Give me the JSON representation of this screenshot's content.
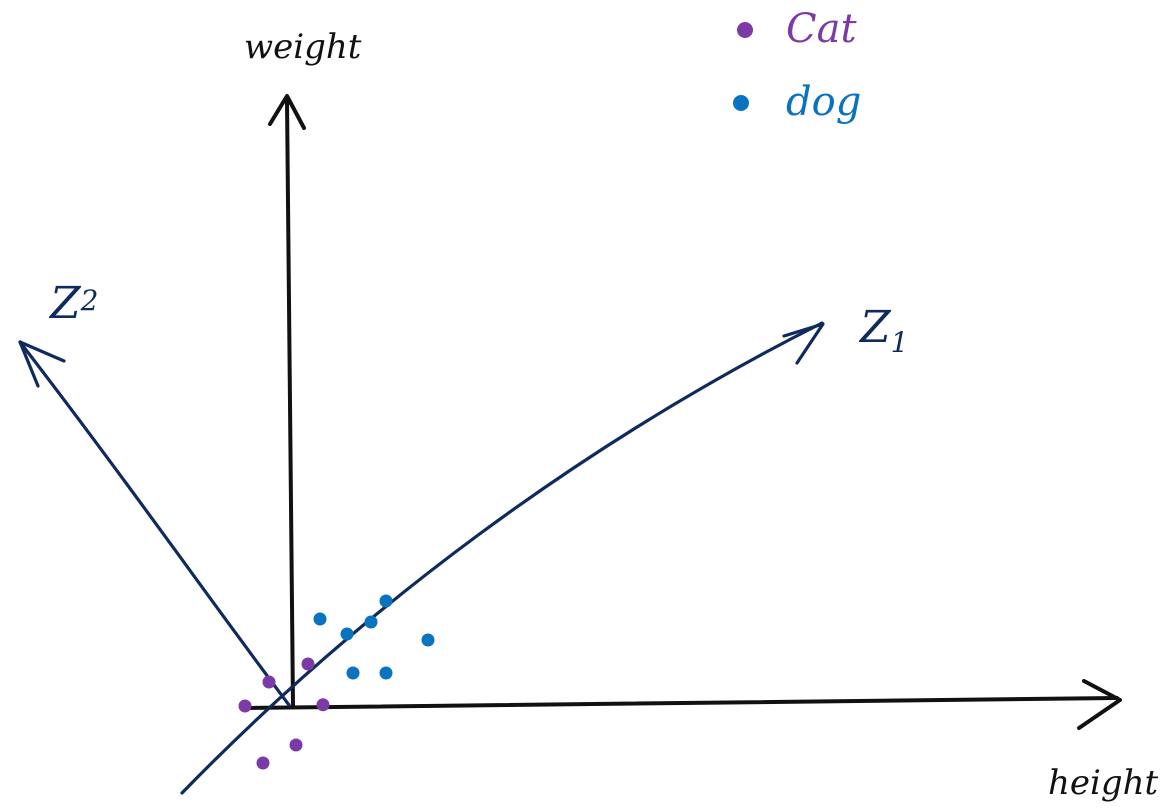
{
  "axes": {
    "vertical_label": "weight",
    "horizontal_label": "height",
    "z1_label": "Z",
    "z1_subscript": "1",
    "z2_label": "Z",
    "z2_subscript": "2"
  },
  "legend": {
    "items": [
      {
        "label": "Cat",
        "color": "#7b3aa6"
      },
      {
        "label": "dog",
        "color": "#0a73bf"
      }
    ]
  },
  "colors": {
    "axis_ink": "#111111",
    "rotated_axis_ink": "#0f2a5c",
    "cat": "#7b3aa6",
    "dog": "#0a73bf"
  },
  "points": {
    "cat": [
      {
        "height": 0.3,
        "weight": 0.7
      },
      {
        "height": -0.35,
        "weight": 0.4
      },
      {
        "height": -0.75,
        "weight": 0.0
      },
      {
        "height": 0.55,
        "weight": 0.02
      },
      {
        "height": 0.1,
        "weight": -0.65
      },
      {
        "height": -0.45,
        "weight": -0.95
      }
    ],
    "dog": [
      {
        "height": 0.5,
        "weight": 1.45
      },
      {
        "height": 0.95,
        "weight": 1.2
      },
      {
        "height": 1.35,
        "weight": 1.4
      },
      {
        "height": 1.6,
        "weight": 1.75
      },
      {
        "height": 2.3,
        "weight": 1.1
      },
      {
        "height": 1.6,
        "weight": 0.55
      },
      {
        "height": 1.05,
        "weight": 0.55
      }
    ]
  }
}
